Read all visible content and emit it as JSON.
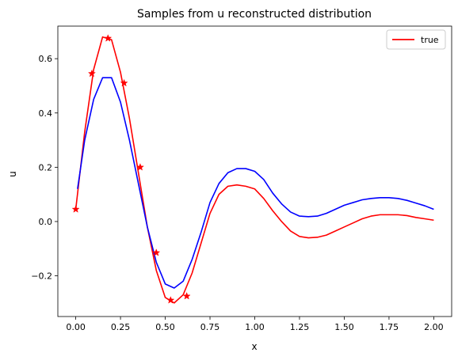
{
  "chart_data": {
    "type": "line",
    "title": "Samples from u reconstructed distribution",
    "xlabel": "x",
    "ylabel": "u",
    "xlim": [
      -0.1,
      2.1
    ],
    "ylim": [
      -0.35,
      0.72
    ],
    "xticks": [
      0.0,
      0.25,
      0.5,
      0.75,
      1.0,
      1.25,
      1.5,
      1.75,
      2.0
    ],
    "xtick_labels": [
      "0.00",
      "0.25",
      "0.50",
      "0.75",
      "1.00",
      "1.25",
      "1.50",
      "1.75",
      "2.00"
    ],
    "yticks": [
      -0.2,
      0.0,
      0.2,
      0.4,
      0.6
    ],
    "ytick_labels": [
      "−0.2",
      "0.0",
      "0.2",
      "0.4",
      "0.6"
    ],
    "grid": false,
    "legend": {
      "placement": "top-right",
      "entries": [
        "true"
      ]
    },
    "series": [
      {
        "name": "true",
        "color": "#ff0000",
        "style": "line",
        "x": [
          0.0,
          0.05,
          0.1,
          0.15,
          0.2,
          0.25,
          0.3,
          0.35,
          0.4,
          0.45,
          0.5,
          0.55,
          0.6,
          0.65,
          0.7,
          0.75,
          0.8,
          0.85,
          0.9,
          0.95,
          1.0,
          1.05,
          1.1,
          1.15,
          1.2,
          1.25,
          1.3,
          1.35,
          1.4,
          1.45,
          1.5,
          1.55,
          1.6,
          1.65,
          1.7,
          1.75,
          1.8,
          1.85,
          1.9,
          1.95,
          2.0
        ],
        "y": [
          0.045,
          0.33,
          0.56,
          0.68,
          0.67,
          0.55,
          0.38,
          0.18,
          -0.02,
          -0.18,
          -0.28,
          -0.3,
          -0.27,
          -0.19,
          -0.08,
          0.03,
          0.1,
          0.13,
          0.135,
          0.13,
          0.12,
          0.085,
          0.04,
          0.0,
          -0.035,
          -0.055,
          -0.06,
          -0.058,
          -0.05,
          -0.035,
          -0.02,
          -0.005,
          0.01,
          0.02,
          0.025,
          0.025,
          0.025,
          0.022,
          0.015,
          0.01,
          0.005
        ]
      },
      {
        "color": "#0000ff",
        "style": "line",
        "x": [
          0.01,
          0.05,
          0.1,
          0.15,
          0.2,
          0.25,
          0.3,
          0.35,
          0.4,
          0.45,
          0.5,
          0.55,
          0.6,
          0.65,
          0.7,
          0.75,
          0.8,
          0.85,
          0.9,
          0.95,
          1.0,
          1.05,
          1.1,
          1.15,
          1.2,
          1.25,
          1.3,
          1.35,
          1.4,
          1.45,
          1.5,
          1.55,
          1.6,
          1.65,
          1.7,
          1.75,
          1.8,
          1.85,
          1.9,
          1.95,
          2.0
        ],
        "y": [
          0.12,
          0.3,
          0.45,
          0.53,
          0.53,
          0.44,
          0.3,
          0.14,
          -0.02,
          -0.15,
          -0.23,
          -0.245,
          -0.22,
          -0.14,
          -0.04,
          0.07,
          0.14,
          0.18,
          0.195,
          0.195,
          0.185,
          0.155,
          0.105,
          0.065,
          0.035,
          0.02,
          0.018,
          0.02,
          0.03,
          0.045,
          0.06,
          0.07,
          0.08,
          0.085,
          0.088,
          0.088,
          0.085,
          0.078,
          0.068,
          0.058,
          0.045
        ]
      },
      {
        "color": "#ff0000",
        "style": "markers",
        "marker": "star",
        "x": [
          0.0,
          0.09,
          0.18,
          0.27,
          0.36,
          0.45,
          0.53,
          0.62
        ],
        "y": [
          0.045,
          0.545,
          0.675,
          0.51,
          0.2,
          -0.115,
          -0.29,
          -0.275
        ]
      }
    ]
  }
}
